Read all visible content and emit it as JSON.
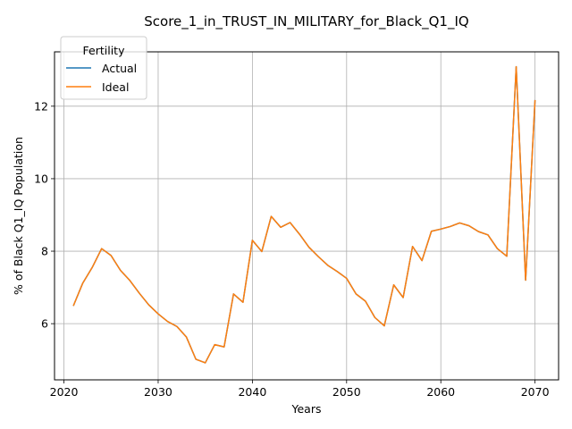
{
  "chart_data": {
    "type": "line",
    "title": "Score_1_in_TRUST_IN_MILITARY_for_Black_Q1_IQ",
    "xlabel": "Years",
    "ylabel": "% of Black Q1_IQ Population",
    "xlim": [
      2019,
      2072.5
    ],
    "ylim": [
      4.45,
      13.5
    ],
    "xticks": [
      2020,
      2030,
      2040,
      2050,
      2060,
      2070
    ],
    "yticks": [
      6,
      8,
      10,
      12
    ],
    "grid": true,
    "legend": {
      "title": "Fertility",
      "placement": "top-left"
    },
    "x": [
      2021,
      2022,
      2023,
      2024,
      2025,
      2026,
      2027,
      2028,
      2029,
      2030,
      2031,
      2032,
      2033,
      2034,
      2035,
      2036,
      2037,
      2038,
      2039,
      2040,
      2041,
      2042,
      2043,
      2044,
      2045,
      2046,
      2047,
      2048,
      2049,
      2050,
      2051,
      2052,
      2053,
      2054,
      2055,
      2056,
      2057,
      2058,
      2059,
      2060,
      2061,
      2062,
      2063,
      2064,
      2065,
      2066,
      2067,
      2068,
      2069,
      2070
    ],
    "series": [
      {
        "name": "Actual",
        "color": "#1f77b4",
        "values": [
          6.49,
          7.12,
          7.55,
          8.07,
          7.88,
          7.47,
          7.19,
          6.84,
          6.52,
          6.27,
          6.06,
          5.92,
          5.63,
          5.02,
          4.92,
          5.42,
          5.36,
          6.82,
          6.59,
          8.3,
          7.99,
          8.96,
          8.66,
          8.79,
          8.47,
          8.11,
          7.85,
          7.61,
          7.44,
          7.25,
          6.82,
          6.62,
          6.17,
          5.94,
          7.07,
          6.72,
          8.13,
          7.74,
          8.55,
          8.61,
          8.68,
          8.78,
          8.7,
          8.54,
          8.45,
          8.07,
          7.86,
          13.09,
          7.2,
          12.17
        ]
      },
      {
        "name": "Ideal",
        "color": "#ff7f0e",
        "values": [
          6.49,
          7.12,
          7.55,
          8.07,
          7.88,
          7.47,
          7.19,
          6.84,
          6.52,
          6.27,
          6.06,
          5.92,
          5.63,
          5.02,
          4.92,
          5.42,
          5.36,
          6.82,
          6.59,
          8.3,
          7.99,
          8.96,
          8.66,
          8.79,
          8.47,
          8.11,
          7.85,
          7.61,
          7.44,
          7.25,
          6.82,
          6.62,
          6.17,
          5.94,
          7.07,
          6.72,
          8.13,
          7.74,
          8.55,
          8.61,
          8.68,
          8.78,
          8.7,
          8.54,
          8.45,
          8.07,
          7.86,
          13.09,
          7.2,
          12.17
        ]
      }
    ]
  }
}
